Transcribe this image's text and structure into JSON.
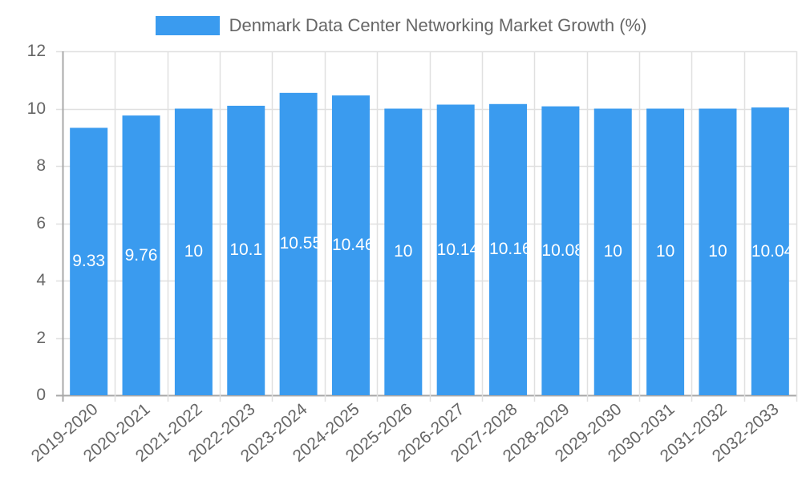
{
  "chart_data": {
    "type": "bar",
    "title": "",
    "legend": [
      {
        "label": "Denmark Data Center Networking Market Growth (%)",
        "color": "#3a9bef"
      }
    ],
    "legend_position": "top",
    "categories": [
      "2019-2020",
      "2020-2021",
      "2021-2022",
      "2022-2023",
      "2023-2024",
      "2024-2025",
      "2025-2026",
      "2026-2027",
      "2027-2028",
      "2028-2029",
      "2029-2030",
      "2030-2031",
      "2031-2032",
      "2032-2033"
    ],
    "series": [
      {
        "name": "Denmark Data Center Networking Market Growth (%)",
        "values": [
          9.33,
          9.76,
          10,
          10.1,
          10.55,
          10.46,
          10,
          10.14,
          10.16,
          10.08,
          10,
          10,
          10,
          10.04
        ],
        "color": "#3a9bef"
      }
    ],
    "data_labels": [
      "9.33",
      "9.76",
      "10",
      "10.1",
      "10.55",
      "10.46",
      "10",
      "10.14",
      "10.16",
      "10.08",
      "10",
      "10",
      "10",
      "10.04"
    ],
    "xlabel": "",
    "ylabel": "",
    "ylim": [
      0,
      12
    ],
    "yticks": [
      0,
      2,
      4,
      6,
      8,
      10,
      12
    ],
    "grid": true,
    "colors": {
      "bar": "#3a9bef",
      "grid": "#e0e0e0",
      "axis": "#a8a8a8",
      "text": "#666666",
      "label": "#ffffff"
    }
  },
  "legend": {
    "label": "Denmark Data Center Networking Market Growth (%)"
  }
}
